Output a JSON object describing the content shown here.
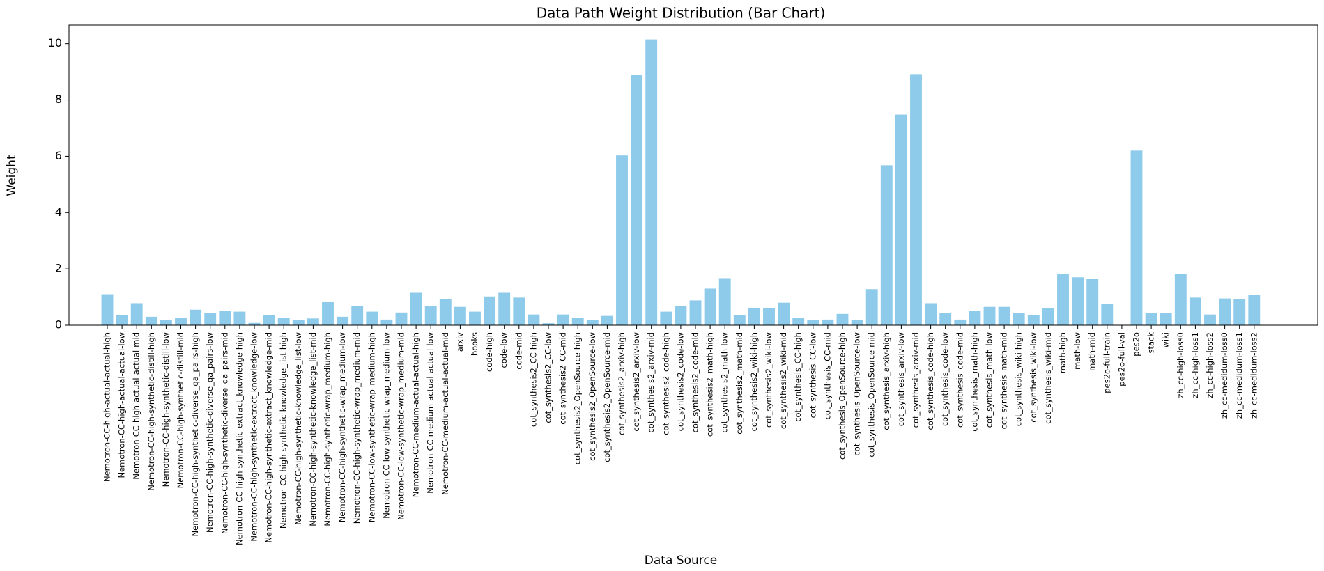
{
  "chart_data": {
    "type": "bar",
    "title": "Data Path Weight Distribution (Bar Chart)",
    "x_label": "Data Source",
    "y_label": "Weight",
    "categories": [
      "Nemotron-CC-high-actual-actual-high",
      "Nemotron-CC-high-actual-actual-low",
      "Nemotron-CC-high-actual-actual-mid",
      "Nemotron-CC-high-synthetic-distill-high",
      "Nemotron-CC-high-synthetic-distill-low",
      "Nemotron-CC-high-synthetic-distill-mid",
      "Nemotron-CC-high-synthetic-diverse_qa_pairs-high",
      "Nemotron-CC-high-synthetic-diverse_qa_pairs-low",
      "Nemotron-CC-high-synthetic-diverse_qa_pairs-mid",
      "Nemotron-CC-high-synthetic-extract_knowledge-high",
      "Nemotron-CC-high-synthetic-extract_knowledge-low",
      "Nemotron-CC-high-synthetic-extract_knowledge-mid",
      "Nemotron-CC-high-synthetic-knowledge_list-high",
      "Nemotron-CC-high-synthetic-knowledge_list-low",
      "Nemotron-CC-high-synthetic-knowledge_list-mid",
      "Nemotron-CC-high-synthetic-wrap_medium-high",
      "Nemotron-CC-high-synthetic-wrap_medium-low",
      "Nemotron-CC-high-synthetic-wrap_medium-mid",
      "Nemotron-CC-low-synthetic-wrap_medium-high",
      "Nemotron-CC-low-synthetic-wrap_medium-low",
      "Nemotron-CC-low-synthetic-wrap_medium-mid",
      "Nemotron-CC-medium-actual-actual-high",
      "Nemotron-CC-medium-actual-actual-low",
      "Nemotron-CC-medium-actual-actual-mid",
      "arxiv",
      "books",
      "code-high",
      "code-low",
      "code-mid",
      "cot_synthesis2_CC-high",
      "cot_synthesis2_CC-low",
      "cot_synthesis2_CC-mid",
      "cot_synthesis2_OpenSource-high",
      "cot_synthesis2_OpenSource-low",
      "cot_synthesis2_OpenSource-mid",
      "cot_synthesis2_arxiv-high",
      "cot_synthesis2_arxiv-low",
      "cot_synthesis2_arxiv-mid",
      "cot_synthesis2_code-high",
      "cot_synthesis2_code-low",
      "cot_synthesis2_code-mid",
      "cot_synthesis2_math-high",
      "cot_synthesis2_math-low",
      "cot_synthesis2_math-mid",
      "cot_synthesis2_wiki-high",
      "cot_synthesis2_wiki-low",
      "cot_synthesis2_wiki-mid",
      "cot_synthesis_CC-high",
      "cot_synthesis_CC-low",
      "cot_synthesis_CC-mid",
      "cot_synthesis_OpenSource-high",
      "cot_synthesis_OpenSource-low",
      "cot_synthesis_OpenSource-mid",
      "cot_synthesis_arxiv-high",
      "cot_synthesis_arxiv-low",
      "cot_synthesis_arxiv-mid",
      "cot_synthesis_code-high",
      "cot_synthesis_code-low",
      "cot_synthesis_code-mid",
      "cot_synthesis_math-high",
      "cot_synthesis_math-low",
      "cot_synthesis_math-mid",
      "cot_synthesis_wiki-high",
      "cot_synthesis_wiki-low",
      "cot_synthesis_wiki-mid",
      "math-high",
      "math-low",
      "math-mid",
      "pes2o-full-train",
      "pes2o-full-val",
      "pes2o",
      "stack",
      "wiki",
      "zh_cc-high-loss0",
      "zh_cc-high-loss1",
      "zh_cc-high-loss2",
      "zh_cc-medidum-loss0",
      "zh_cc-medidum-loss1",
      "zh_cc-medidum-loss2"
    ],
    "values": [
      1.1,
      0.35,
      0.78,
      0.3,
      0.18,
      0.25,
      0.55,
      0.42,
      0.5,
      0.48,
      0.08,
      0.35,
      0.27,
      0.18,
      0.24,
      0.83,
      0.3,
      0.68,
      0.48,
      0.2,
      0.45,
      1.15,
      0.68,
      0.92,
      0.65,
      0.48,
      1.02,
      1.15,
      0.98,
      0.38,
      0.07,
      0.38,
      0.27,
      0.18,
      0.33,
      6.03,
      8.9,
      10.15,
      0.48,
      0.68,
      0.88,
      1.3,
      1.67,
      0.35,
      0.62,
      0.6,
      0.8,
      0.25,
      0.18,
      0.2,
      0.4,
      0.18,
      1.28,
      5.68,
      7.48,
      8.92,
      0.78,
      0.42,
      0.2,
      0.5,
      0.65,
      0.65,
      0.42,
      0.35,
      0.6,
      1.82,
      1.7,
      1.65,
      0.75,
      0.01,
      6.2,
      0.42,
      0.42,
      1.82,
      0.98,
      0.38,
      0.95,
      0.92,
      1.07
    ],
    "color": "#8ecbea",
    "ylim": [
      0,
      10.66
    ],
    "yticks": [
      0,
      2,
      4,
      6,
      8,
      10
    ],
    "grid": false
  }
}
